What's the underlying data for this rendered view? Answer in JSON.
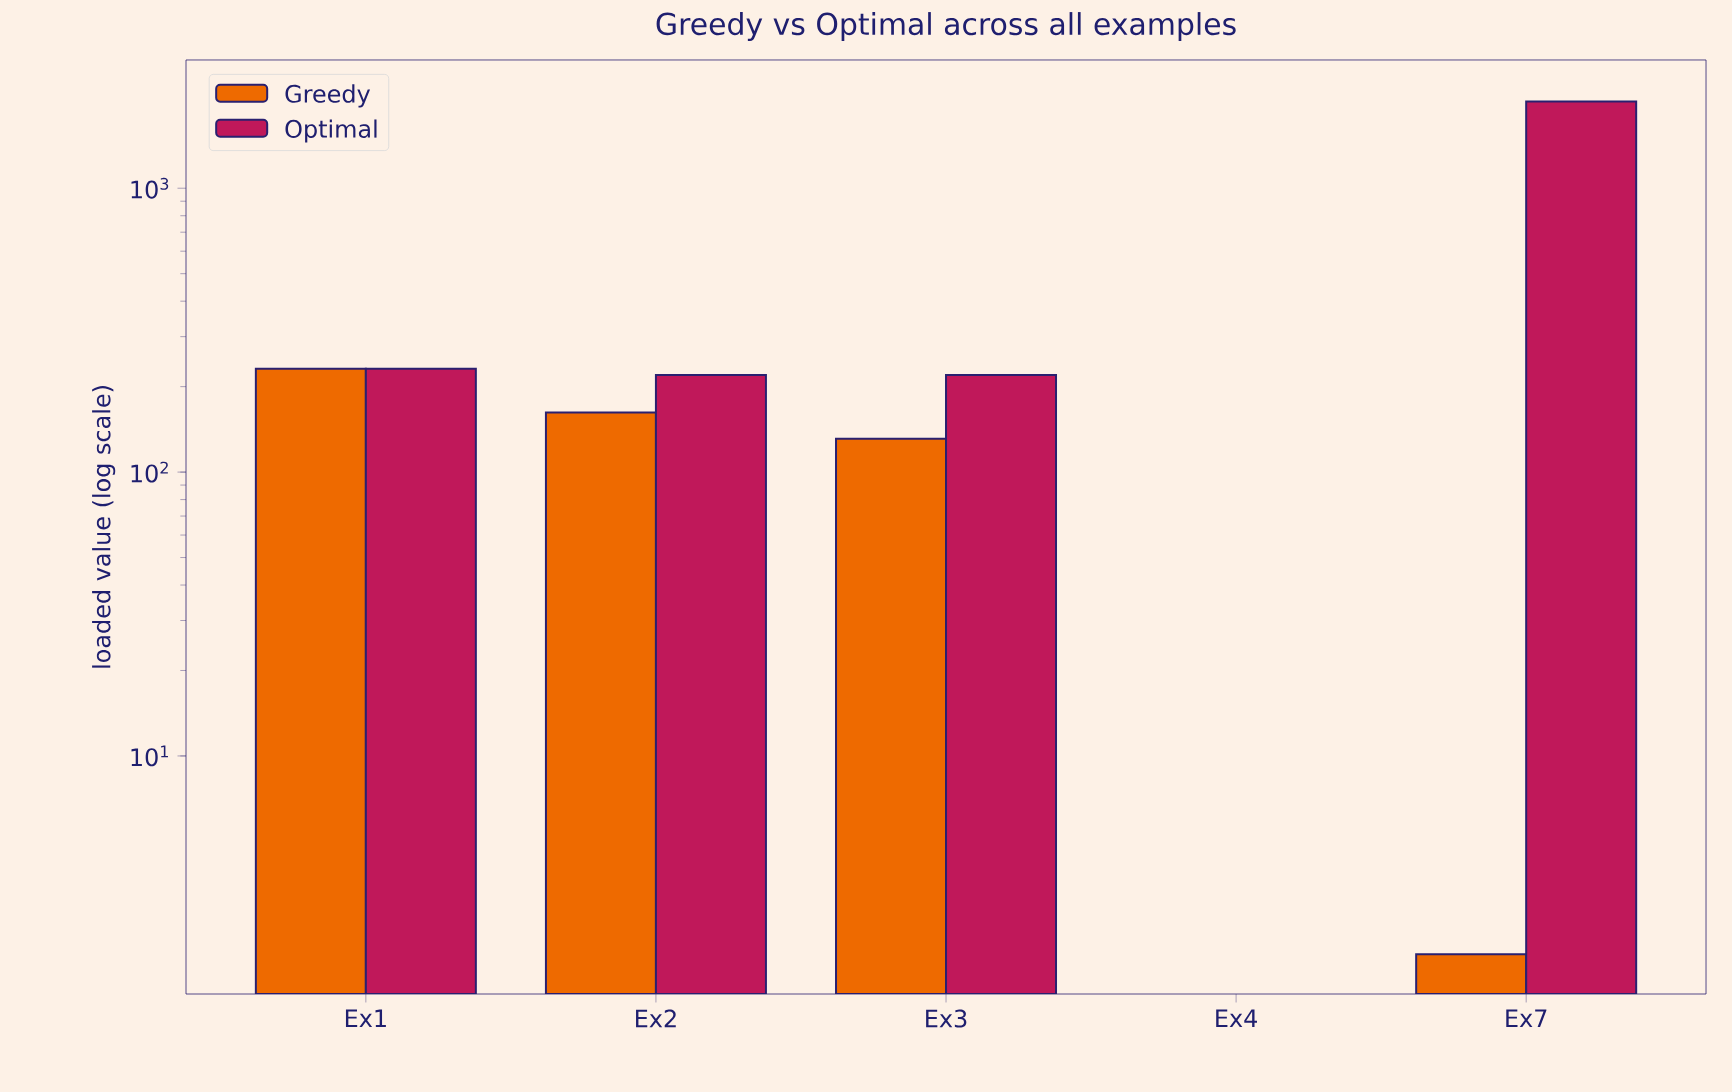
{
  "chart_data": {
    "type": "bar",
    "title": "Greedy vs Optimal across all examples",
    "ylabel": "loaded value (log scale)",
    "categories": [
      "Ex1",
      "Ex2",
      "Ex3",
      "Ex4",
      "Ex7"
    ],
    "series": [
      {
        "name": "Greedy",
        "color": "#ee6a00",
        "values": [
          231,
          162,
          131,
          null,
          2
        ]
      },
      {
        "name": "Optimal",
        "color": "#c0185a",
        "values": [
          231,
          220,
          220,
          null,
          2020
        ]
      }
    ],
    "log": "y",
    "ylim": [
      1.45,
      2830
    ],
    "yticks": [
      {
        "value": 10,
        "label": "10$^{1}$"
      },
      {
        "value": 100,
        "label": "10$^{2}$"
      },
      {
        "value": 1000,
        "label": "10$^{3}$"
      }
    ],
    "legend": "top left",
    "grid": false
  }
}
